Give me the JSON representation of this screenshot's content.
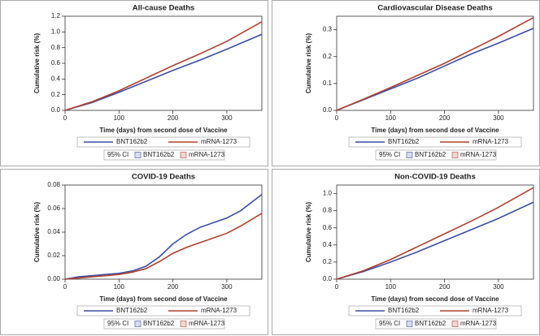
{
  "chart_data": [
    {
      "type": "line",
      "title": "All-cause Deaths",
      "x_label": "Time (days) from second dose of Vaccine",
      "y_label": "Cumulative risk (%)",
      "x": [
        0,
        50,
        100,
        150,
        200,
        250,
        300,
        365
      ],
      "xlim": [
        0,
        365
      ],
      "xticks": [
        0,
        100,
        200,
        300
      ],
      "ylim": [
        0,
        1.2
      ],
      "yticks": [
        {
          "value": 0,
          "label": "0.0"
        },
        {
          "value": 0.2,
          "label": "0.2"
        },
        {
          "value": 0.4,
          "label": "0.4"
        },
        {
          "value": 0.6,
          "label": "0.6"
        },
        {
          "value": 0.8,
          "label": "0.8"
        },
        {
          "value": 1,
          "label": "1.0"
        },
        {
          "value": 1.2,
          "label": "1.2"
        }
      ],
      "ci_label": "95% CI",
      "series": [
        {
          "name": "BNT162b2",
          "color": "#3a4fa3",
          "values": [
            0,
            0.1,
            0.23,
            0.37,
            0.51,
            0.64,
            0.78,
            0.97
          ]
        },
        {
          "name": "mRNA-1273",
          "color": "#b0402f",
          "values": [
            0,
            0.11,
            0.25,
            0.41,
            0.57,
            0.72,
            0.88,
            1.13
          ]
        }
      ]
    },
    {
      "type": "line",
      "title": "Cardiovascular Disease Deaths",
      "x_label": "Time (days) from second dose of Vaccine",
      "y_label": "Cumulative risk (%)",
      "x": [
        0,
        50,
        100,
        150,
        200,
        250,
        300,
        365
      ],
      "xlim": [
        0,
        365
      ],
      "xticks": [
        0,
        100,
        200,
        300
      ],
      "ylim": [
        0,
        0.35
      ],
      "yticks": [
        {
          "value": 0,
          "label": "0.0"
        },
        0.1,
        0.2,
        0.3
      ],
      "ci_label": "95% CI",
      "series": [
        {
          "name": "BNT162b2",
          "color": "#3a4fa3",
          "values": [
            0,
            0.04,
            0.08,
            0.12,
            0.165,
            0.21,
            0.25,
            0.305
          ]
        },
        {
          "name": "mRNA-1273",
          "color": "#b0402f",
          "values": [
            0,
            0.042,
            0.085,
            0.13,
            0.175,
            0.225,
            0.275,
            0.345
          ]
        }
      ]
    },
    {
      "type": "line",
      "title": "COVID-19 Deaths",
      "x_label": "Time (days) from second dose of Vaccine",
      "y_label": "Cumulative risk (%)",
      "x": [
        0,
        25,
        50,
        75,
        100,
        125,
        150,
        175,
        200,
        225,
        250,
        275,
        300,
        325,
        365
      ],
      "xlim": [
        0,
        365
      ],
      "xticks": [
        0,
        100,
        200,
        300
      ],
      "ylim": [
        0,
        0.08
      ],
      "yticks": [
        {
          "value": 0,
          "label": "0.00"
        },
        {
          "value": 0.02,
          "label": "0.02"
        },
        {
          "value": 0.04,
          "label": "0.04"
        },
        {
          "value": 0.06,
          "label": "0.06"
        },
        {
          "value": 0.08,
          "label": "0.08"
        }
      ],
      "ci_label": "95% CI",
      "series": [
        {
          "name": "BNT162b2",
          "color": "#3a4fa3",
          "values": [
            0,
            0.002,
            0.003,
            0.004,
            0.005,
            0.007,
            0.011,
            0.019,
            0.03,
            0.038,
            0.044,
            0.048,
            0.052,
            0.058,
            0.072
          ]
        },
        {
          "name": "mRNA-1273",
          "color": "#b0402f",
          "values": [
            0,
            0.001,
            0.002,
            0.003,
            0.004,
            0.006,
            0.009,
            0.015,
            0.022,
            0.027,
            0.031,
            0.035,
            0.039,
            0.045,
            0.056
          ]
        }
      ]
    },
    {
      "type": "line",
      "title": "Non-COVID-19 Deaths",
      "x_label": "Time (days) from second dose of Vaccine",
      "y_label": "Cumulative risk (%)",
      "x": [
        0,
        50,
        100,
        150,
        200,
        250,
        300,
        365
      ],
      "xlim": [
        0,
        365
      ],
      "xticks": [
        0,
        100,
        200,
        300
      ],
      "ylim": [
        0,
        1.1
      ],
      "yticks": [
        {
          "value": 0,
          "label": "0.0"
        },
        {
          "value": 0.2,
          "label": "0.2"
        },
        {
          "value": 0.4,
          "label": "0.4"
        },
        {
          "value": 0.6,
          "label": "0.6"
        },
        {
          "value": 0.8,
          "label": "0.8"
        },
        {
          "value": 1,
          "label": "1.0"
        }
      ],
      "ci_label": "95% CI",
      "series": [
        {
          "name": "BNT162b2",
          "color": "#3a4fa3",
          "values": [
            0,
            0.09,
            0.2,
            0.32,
            0.45,
            0.58,
            0.71,
            0.9
          ]
        },
        {
          "name": "mRNA-1273",
          "color": "#b0402f",
          "values": [
            0,
            0.1,
            0.23,
            0.38,
            0.53,
            0.68,
            0.84,
            1.07
          ]
        }
      ]
    }
  ]
}
